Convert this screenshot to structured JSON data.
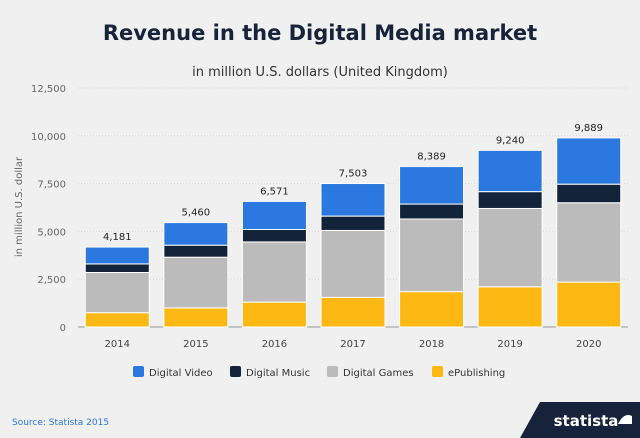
{
  "chart_data": {
    "type": "bar",
    "stacked": true,
    "title": "Revenue in the Digital Media market",
    "subtitle": "in million U.S. dollars (United Kingdom)",
    "ylabel": "in million U.S. dollar",
    "ylim": [
      0,
      12500
    ],
    "yticks": [
      0,
      2500,
      5000,
      7500,
      10000,
      12500
    ],
    "ytick_labels": [
      "0",
      "2,500",
      "5,000",
      "7,500",
      "10,000",
      "12,500"
    ],
    "categories": [
      "2014",
      "2015",
      "2016",
      "2017",
      "2018",
      "2019",
      "2020"
    ],
    "totals": [
      4181,
      5460,
      6571,
      7503,
      8389,
      9240,
      9889
    ],
    "total_labels": [
      "4,181",
      "5,460",
      "6,571",
      "7,503",
      "8,389",
      "9,240",
      "9,889"
    ],
    "grid": true,
    "legend_position": "bottom",
    "series": [
      {
        "name": "ePublishing",
        "color": "#fdb813",
        "values": [
          750,
          1000,
          1300,
          1550,
          1850,
          2100,
          2350
        ]
      },
      {
        "name": "Digital Games",
        "color": "#bbbbbb",
        "values": [
          2100,
          2650,
          3150,
          3500,
          3800,
          4100,
          4150
        ]
      },
      {
        "name": "Digital Music",
        "color": "#13243a",
        "values": [
          450,
          630,
          650,
          750,
          780,
          880,
          970
        ]
      },
      {
        "name": "Digital Video",
        "color": "#2a78e0",
        "values": [
          881,
          1180,
          1471,
          1703,
          1959,
          2160,
          2419
        ]
      }
    ],
    "legend_order": [
      "Digital Video",
      "Digital Music",
      "Digital Games",
      "ePublishing"
    ]
  },
  "footer": {
    "source": "Source: Statista 2015",
    "brand": "statista"
  }
}
